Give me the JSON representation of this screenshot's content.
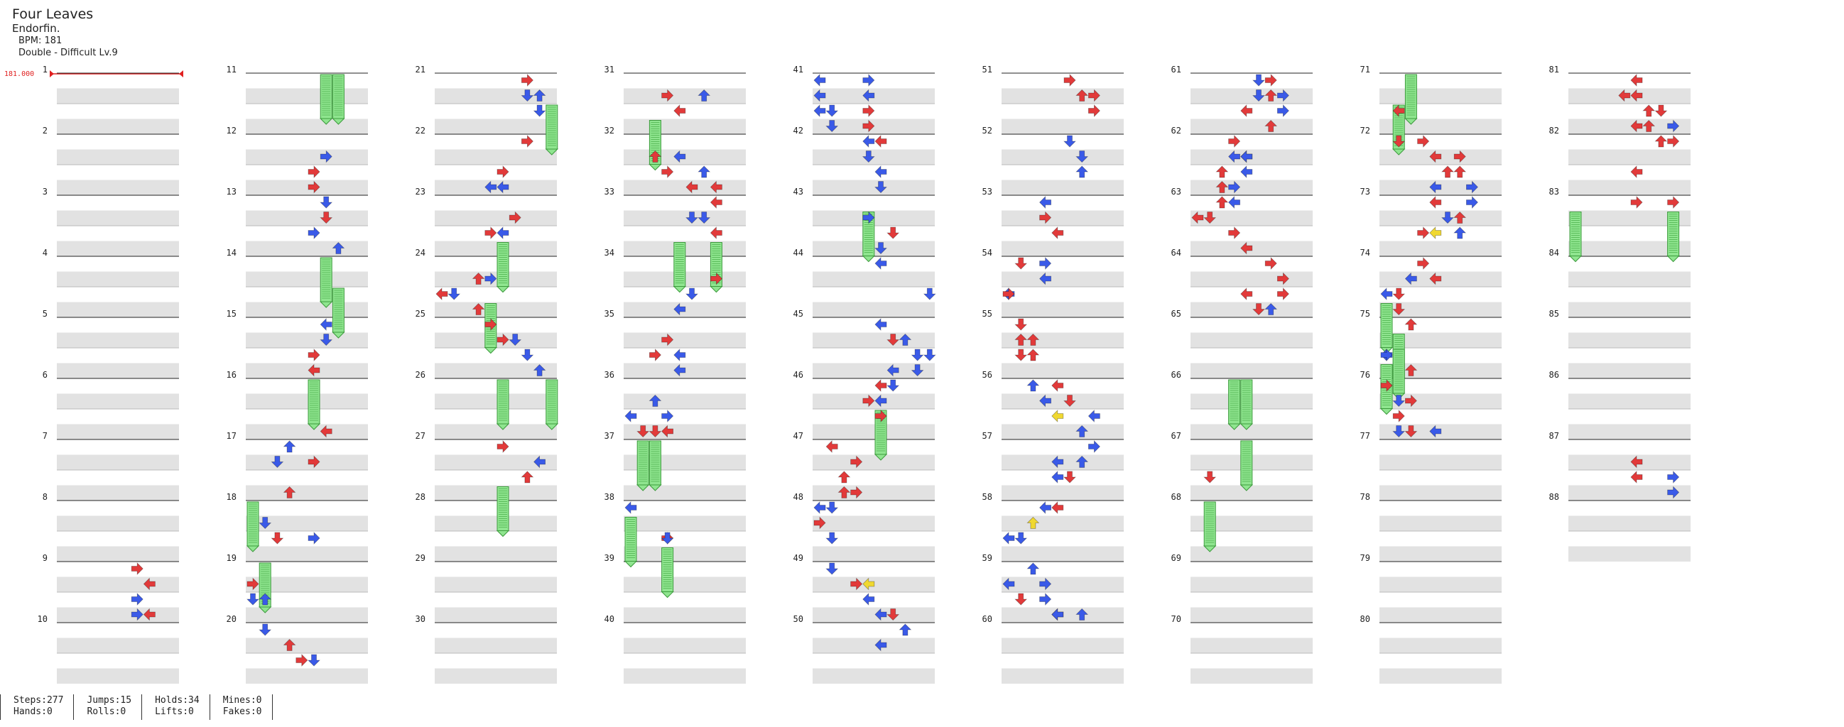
{
  "song": {
    "title": "Four Leaves",
    "artist": "Endorfin.",
    "bpm_line": "BPM: 181",
    "chart_line": "Double - Difficult Lv.9"
  },
  "bpm_marker": "181.000",
  "total_measures": 88,
  "stats": [
    {
      "a": "Steps:277",
      "b": "Hands:0"
    },
    {
      "a": "Jumps:15",
      "b": "Rolls:0"
    },
    {
      "a": "Holds:34",
      "b": "Lifts:0"
    },
    {
      "a": "Mines:0",
      "b": "Fakes:0"
    }
  ],
  "colors": {
    "quarter": "#e23a3a",
    "eighth": "#3a5ae8",
    "sixteenth": "#f0d830",
    "hold": "#8fe58f",
    "bpm": "#e02020",
    "band": "#e2e2e2"
  },
  "notes": [
    [
      9,
      0,
      6,
      "R",
      "q"
    ],
    [
      9,
      1,
      7,
      "L",
      "q"
    ],
    [
      9,
      2,
      6,
      "R",
      "e"
    ],
    [
      9,
      3,
      6,
      "R",
      "e"
    ],
    [
      9,
      3,
      7,
      "L",
      "q"
    ],
    [
      11,
      0,
      6,
      "L",
      "h"
    ],
    [
      11,
      0,
      7,
      "L",
      "h"
    ],
    [
      12,
      1,
      6,
      "R",
      "e"
    ],
    [
      12,
      2,
      5,
      "R",
      "q"
    ],
    [
      12,
      3,
      5,
      "R",
      "q"
    ],
    [
      13,
      0,
      6,
      "D",
      "e"
    ],
    [
      13,
      1,
      6,
      "D",
      "q"
    ],
    [
      13,
      2,
      5,
      "R",
      "e"
    ],
    [
      13,
      3,
      7,
      "U",
      "e"
    ],
    [
      14,
      0,
      6,
      "D",
      "h"
    ],
    [
      14,
      2,
      7,
      "L",
      "h"
    ],
    [
      15,
      0,
      6,
      "L",
      "e"
    ],
    [
      15,
      1,
      6,
      "D",
      "e"
    ],
    [
      15,
      2,
      5,
      "R",
      "q"
    ],
    [
      15,
      3,
      5,
      "L",
      "q"
    ],
    [
      16,
      0,
      5,
      "L",
      "h"
    ],
    [
      16,
      3,
      6,
      "L",
      "q"
    ],
    [
      17,
      0,
      3,
      "U",
      "e"
    ],
    [
      17,
      1,
      2,
      "D",
      "e"
    ],
    [
      17,
      1,
      5,
      "R",
      "q"
    ],
    [
      17,
      3,
      3,
      "U",
      "q"
    ],
    [
      18,
      0,
      0,
      "L",
      "h"
    ],
    [
      18,
      1,
      1,
      "D",
      "e"
    ],
    [
      18,
      2,
      2,
      "D",
      "q"
    ],
    [
      18,
      2,
      5,
      "R",
      "e"
    ],
    [
      19,
      0,
      1,
      "L",
      "h"
    ],
    [
      19,
      1,
      0,
      "R",
      "q"
    ],
    [
      19,
      2,
      0,
      "D",
      "e"
    ],
    [
      19,
      2,
      1,
      "U",
      "e"
    ],
    [
      20,
      0,
      1,
      "D",
      "e"
    ],
    [
      20,
      1,
      3,
      "U",
      "q"
    ],
    [
      20,
      2,
      4,
      "R",
      "q"
    ],
    [
      20,
      2,
      5,
      "D",
      "e"
    ],
    [
      21,
      0,
      7,
      "R",
      "q"
    ],
    [
      21,
      1,
      8,
      "U",
      "e"
    ],
    [
      21,
      1,
      7,
      "D",
      "e"
    ],
    [
      21,
      2,
      8,
      "D",
      "e"
    ],
    [
      21,
      2,
      9,
      "D",
      "h"
    ],
    [
      22,
      0,
      7,
      "R",
      "q"
    ],
    [
      22,
      2,
      5,
      "R",
      "q"
    ],
    [
      22,
      3,
      5,
      "L",
      "e"
    ],
    [
      22,
      3,
      4,
      "L",
      "e"
    ],
    [
      23,
      1,
      6,
      "R",
      "q"
    ],
    [
      23,
      2,
      4,
      "R",
      "q"
    ],
    [
      23,
      2,
      5,
      "L",
      "e"
    ],
    [
      23,
      3,
      5,
      "L",
      "h"
    ],
    [
      24,
      1,
      3,
      "U",
      "q"
    ],
    [
      24,
      1,
      4,
      "R",
      "e"
    ],
    [
      24,
      2,
      0,
      "L",
      "q"
    ],
    [
      24,
      2,
      1,
      "D",
      "e"
    ],
    [
      24,
      3,
      3,
      "U",
      "q"
    ],
    [
      24,
      3,
      4,
      "D",
      "h"
    ],
    [
      25,
      0,
      4,
      "R",
      "q"
    ],
    [
      25,
      1,
      6,
      "D",
      "e"
    ],
    [
      25,
      1,
      5,
      "R",
      "q"
    ],
    [
      25,
      2,
      7,
      "D",
      "e"
    ],
    [
      25,
      3,
      8,
      "U",
      "e"
    ],
    [
      26,
      0,
      5,
      "L",
      "h"
    ],
    [
      26,
      0,
      9,
      "L",
      "h"
    ],
    [
      27,
      0,
      5,
      "R",
      "q"
    ],
    [
      27,
      1,
      8,
      "L",
      "e"
    ],
    [
      27,
      2,
      7,
      "U",
      "q"
    ],
    [
      27,
      3,
      5,
      "D",
      "h"
    ],
    [
      31,
      1,
      6,
      "U",
      "e"
    ],
    [
      31,
      1,
      3,
      "R",
      "q"
    ],
    [
      31,
      2,
      4,
      "L",
      "q"
    ],
    [
      31,
      3,
      2,
      "L",
      "h"
    ],
    [
      32,
      1,
      2,
      "U",
      "q"
    ],
    [
      32,
      1,
      4,
      "L",
      "e"
    ],
    [
      32,
      2,
      3,
      "R",
      "q"
    ],
    [
      32,
      2,
      6,
      "U",
      "e"
    ],
    [
      32,
      3,
      5,
      "L",
      "q"
    ],
    [
      32,
      3,
      7,
      "L",
      "q"
    ],
    [
      33,
      0,
      7,
      "L",
      "q"
    ],
    [
      33,
      1,
      5,
      "D",
      "e"
    ],
    [
      33,
      1,
      6,
      "D",
      "e"
    ],
    [
      33,
      2,
      7,
      "L",
      "q"
    ],
    [
      33,
      3,
      4,
      "L",
      "h"
    ],
    [
      33,
      3,
      7,
      "L",
      "h"
    ],
    [
      34,
      1,
      7,
      "R",
      "q"
    ],
    [
      34,
      2,
      5,
      "D",
      "e"
    ],
    [
      34,
      3,
      4,
      "L",
      "e"
    ],
    [
      35,
      1,
      3,
      "R",
      "q"
    ],
    [
      35,
      2,
      4,
      "L",
      "e"
    ],
    [
      35,
      2,
      2,
      "R",
      "q"
    ],
    [
      35,
      3,
      4,
      "L",
      "e"
    ],
    [
      36,
      1,
      2,
      "U",
      "e"
    ],
    [
      36,
      2,
      0,
      "L",
      "e"
    ],
    [
      36,
      2,
      3,
      "R",
      "e"
    ],
    [
      36,
      3,
      1,
      "D",
      "q"
    ],
    [
      36,
      3,
      2,
      "D",
      "q"
    ],
    [
      36,
      3,
      3,
      "L",
      "q"
    ],
    [
      37,
      0,
      1,
      "D",
      "h"
    ],
    [
      37,
      0,
      2,
      "D",
      "h"
    ],
    [
      38,
      0,
      0,
      "L",
      "e"
    ],
    [
      38,
      1,
      0,
      "L",
      "h"
    ],
    [
      38,
      2,
      3,
      "R",
      "q"
    ],
    [
      38,
      2,
      3,
      "D",
      "e"
    ],
    [
      38,
      3,
      3,
      "D",
      "h"
    ],
    [
      41,
      0,
      0,
      "L",
      "e"
    ],
    [
      41,
      0,
      4,
      "R",
      "e"
    ],
    [
      41,
      1,
      0,
      "L",
      "e"
    ],
    [
      41,
      1,
      4,
      "L",
      "e"
    ],
    [
      41,
      2,
      0,
      "L",
      "e"
    ],
    [
      41,
      2,
      1,
      "D",
      "e"
    ],
    [
      41,
      2,
      4,
      "R",
      "q"
    ],
    [
      41,
      3,
      1,
      "D",
      "e"
    ],
    [
      41,
      3,
      4,
      "R",
      "q"
    ],
    [
      42,
      0,
      4,
      "L",
      "e"
    ],
    [
      42,
      0,
      5,
      "L",
      "q"
    ],
    [
      42,
      1,
      4,
      "D",
      "e"
    ],
    [
      42,
      2,
      5,
      "L",
      "e"
    ],
    [
      42,
      3,
      5,
      "D",
      "e"
    ],
    [
      43,
      1,
      4,
      "R",
      "e"
    ],
    [
      43,
      1,
      4,
      "D",
      "h"
    ],
    [
      43,
      2,
      6,
      "D",
      "q"
    ],
    [
      43,
      3,
      5,
      "D",
      "e"
    ],
    [
      44,
      0,
      5,
      "L",
      "e"
    ],
    [
      44,
      2,
      9,
      "D",
      "e"
    ],
    [
      45,
      0,
      5,
      "L",
      "e"
    ],
    [
      45,
      1,
      6,
      "D",
      "q"
    ],
    [
      45,
      1,
      7,
      "U",
      "e"
    ],
    [
      45,
      2,
      8,
      "D",
      "e"
    ],
    [
      45,
      2,
      9,
      "D",
      "e"
    ],
    [
      45,
      3,
      6,
      "L",
      "e"
    ],
    [
      45,
      3,
      8,
      "D",
      "e"
    ],
    [
      46,
      0,
      5,
      "L",
      "q"
    ],
    [
      46,
      0,
      6,
      "D",
      "e"
    ],
    [
      46,
      1,
      5,
      "L",
      "e"
    ],
    [
      46,
      1,
      4,
      "R",
      "q"
    ],
    [
      46,
      2,
      5,
      "R",
      "q"
    ],
    [
      46,
      2,
      5,
      "D",
      "h"
    ],
    [
      47,
      0,
      1,
      "L",
      "q"
    ],
    [
      47,
      1,
      3,
      "R",
      "q"
    ],
    [
      47,
      2,
      2,
      "U",
      "q"
    ],
    [
      47,
      3,
      2,
      "U",
      "q"
    ],
    [
      47,
      3,
      3,
      "R",
      "q"
    ],
    [
      48,
      0,
      0,
      "L",
      "e"
    ],
    [
      48,
      0,
      1,
      "D",
      "e"
    ],
    [
      48,
      2,
      1,
      "D",
      "e"
    ],
    [
      48,
      1,
      0,
      "R",
      "q"
    ],
    [
      49,
      0,
      1,
      "D",
      "e"
    ],
    [
      49,
      1,
      3,
      "R",
      "q"
    ],
    [
      49,
      1,
      4,
      "L",
      "s"
    ],
    [
      49,
      2,
      4,
      "L",
      "e"
    ],
    [
      49,
      3,
      5,
      "L",
      "e"
    ],
    [
      49,
      3,
      6,
      "D",
      "q"
    ],
    [
      50,
      0,
      7,
      "U",
      "e"
    ],
    [
      50,
      1,
      5,
      "L",
      "e"
    ],
    [
      51,
      0,
      5,
      "R",
      "q"
    ],
    [
      51,
      1,
      6,
      "U",
      "q"
    ],
    [
      51,
      1,
      7,
      "R",
      "q"
    ],
    [
      51,
      2,
      7,
      "R",
      "q"
    ],
    [
      52,
      0,
      5,
      "D",
      "e"
    ],
    [
      52,
      1,
      6,
      "D",
      "e"
    ],
    [
      52,
      2,
      6,
      "U",
      "e"
    ],
    [
      53,
      0,
      3,
      "L",
      "e"
    ],
    [
      53,
      1,
      3,
      "R",
      "q"
    ],
    [
      53,
      2,
      4,
      "L",
      "q"
    ],
    [
      54,
      0,
      1,
      "D",
      "q"
    ],
    [
      54,
      0,
      3,
      "R",
      "e"
    ],
    [
      54,
      1,
      3,
      "L",
      "e"
    ],
    [
      54,
      2,
      0,
      "L",
      "e"
    ],
    [
      54,
      2,
      0,
      "R",
      "q"
    ],
    [
      55,
      0,
      1,
      "D",
      "q"
    ],
    [
      55,
      1,
      1,
      "U",
      "q"
    ],
    [
      55,
      1,
      2,
      "U",
      "q"
    ],
    [
      55,
      2,
      1,
      "D",
      "q"
    ],
    [
      55,
      2,
      2,
      "U",
      "q"
    ],
    [
      56,
      0,
      2,
      "U",
      "e"
    ],
    [
      56,
      0,
      4,
      "L",
      "q"
    ],
    [
      56,
      1,
      3,
      "L",
      "e"
    ],
    [
      56,
      1,
      5,
      "D",
      "q"
    ],
    [
      56,
      2,
      4,
      "L",
      "s"
    ],
    [
      56,
      2,
      7,
      "L",
      "e"
    ],
    [
      56,
      3,
      6,
      "U",
      "e"
    ],
    [
      57,
      0,
      7,
      "R",
      "e"
    ],
    [
      57,
      1,
      4,
      "L",
      "e"
    ],
    [
      57,
      1,
      6,
      "U",
      "e"
    ],
    [
      57,
      2,
      4,
      "L",
      "e"
    ],
    [
      57,
      2,
      5,
      "D",
      "q"
    ],
    [
      58,
      0,
      3,
      "L",
      "e"
    ],
    [
      58,
      0,
      4,
      "L",
      "q"
    ],
    [
      58,
      1,
      2,
      "U",
      "s"
    ],
    [
      58,
      2,
      1,
      "D",
      "e"
    ],
    [
      58,
      2,
      0,
      "L",
      "e"
    ],
    [
      59,
      0,
      2,
      "U",
      "e"
    ],
    [
      59,
      1,
      0,
      "L",
      "e"
    ],
    [
      59,
      1,
      3,
      "R",
      "e"
    ],
    [
      59,
      2,
      1,
      "D",
      "q"
    ],
    [
      59,
      2,
      3,
      "R",
      "e"
    ],
    [
      59,
      3,
      4,
      "L",
      "q"
    ],
    [
      59,
      3,
      6,
      "U",
      "e"
    ],
    [
      59,
      3,
      4,
      "L",
      "e"
    ],
    [
      61,
      0,
      5,
      "D",
      "e"
    ],
    [
      61,
      0,
      6,
      "R",
      "q"
    ],
    [
      61,
      1,
      5,
      "D",
      "e"
    ],
    [
      61,
      1,
      6,
      "U",
      "q"
    ],
    [
      61,
      1,
      7,
      "R",
      "e"
    ],
    [
      61,
      2,
      4,
      "L",
      "q"
    ],
    [
      61,
      2,
      7,
      "R",
      "e"
    ],
    [
      61,
      3,
      6,
      "U",
      "q"
    ],
    [
      62,
      0,
      3,
      "R",
      "q"
    ],
    [
      62,
      1,
      4,
      "L",
      "s"
    ],
    [
      62,
      1,
      3,
      "L",
      "e"
    ],
    [
      62,
      1,
      4,
      "L",
      "e"
    ],
    [
      62,
      2,
      2,
      "U",
      "q"
    ],
    [
      62,
      2,
      4,
      "L",
      "e"
    ],
    [
      62,
      3,
      2,
      "U",
      "q"
    ],
    [
      62,
      3,
      3,
      "R",
      "e"
    ],
    [
      63,
      0,
      2,
      "U",
      "q"
    ],
    [
      63,
      0,
      3,
      "L",
      "e"
    ],
    [
      63,
      1,
      0,
      "L",
      "q"
    ],
    [
      63,
      1,
      1,
      "D",
      "q"
    ],
    [
      63,
      2,
      3,
      "R",
      "q"
    ],
    [
      63,
      3,
      4,
      "L",
      "q"
    ],
    [
      64,
      0,
      6,
      "R",
      "q"
    ],
    [
      64,
      1,
      7,
      "R",
      "q"
    ],
    [
      64,
      2,
      4,
      "L",
      "q"
    ],
    [
      64,
      2,
      7,
      "R",
      "q"
    ],
    [
      64,
      3,
      5,
      "D",
      "q"
    ],
    [
      64,
      3,
      6,
      "U",
      "e"
    ],
    [
      66,
      0,
      3,
      "L",
      "h"
    ],
    [
      66,
      0,
      4,
      "L",
      "h"
    ],
    [
      67,
      0,
      4,
      "L",
      "h"
    ],
    [
      67,
      2,
      1,
      "D",
      "q"
    ],
    [
      68,
      0,
      1,
      "D",
      "h"
    ],
    [
      71,
      0,
      2,
      "U",
      "h"
    ],
    [
      71,
      2,
      1,
      "L",
      "q"
    ],
    [
      71,
      2,
      1,
      "L",
      "h"
    ],
    [
      72,
      0,
      1,
      "D",
      "q"
    ],
    [
      72,
      0,
      3,
      "R",
      "q"
    ],
    [
      72,
      1,
      4,
      "L",
      "q"
    ],
    [
      72,
      1,
      6,
      "R",
      "q"
    ],
    [
      72,
      2,
      5,
      "U",
      "q"
    ],
    [
      72,
      2,
      6,
      "U",
      "q"
    ],
    [
      72,
      3,
      4,
      "L",
      "e"
    ],
    [
      72,
      3,
      7,
      "R",
      "e"
    ],
    [
      73,
      0,
      4,
      "L",
      "q"
    ],
    [
      73,
      0,
      7,
      "R",
      "e"
    ],
    [
      73,
      1,
      5,
      "D",
      "e"
    ],
    [
      73,
      1,
      6,
      "U",
      "q"
    ],
    [
      73,
      2,
      4,
      "L",
      "s"
    ],
    [
      73,
      2,
      3,
      "R",
      "q"
    ],
    [
      73,
      2,
      6,
      "U",
      "e"
    ],
    [
      74,
      0,
      3,
      "R",
      "q"
    ],
    [
      74,
      1,
      4,
      "L",
      "q"
    ],
    [
      74,
      1,
      2,
      "L",
      "e"
    ],
    [
      74,
      2,
      0,
      "L",
      "e"
    ],
    [
      74,
      2,
      1,
      "D",
      "q"
    ],
    [
      74,
      3,
      0,
      "L",
      "h"
    ],
    [
      74,
      3,
      1,
      "D",
      "q"
    ],
    [
      75,
      0,
      2,
      "U",
      "q"
    ],
    [
      75,
      1,
      1,
      "D",
      "h"
    ],
    [
      75,
      2,
      0,
      "L",
      "e"
    ],
    [
      75,
      2,
      0,
      "R",
      "e"
    ],
    [
      75,
      2,
      1,
      "D",
      "h"
    ],
    [
      75,
      3,
      0,
      "L",
      "h"
    ],
    [
      75,
      3,
      2,
      "U",
      "q"
    ],
    [
      76,
      0,
      0,
      "R",
      "q"
    ],
    [
      76,
      1,
      2,
      "R",
      "q"
    ],
    [
      76,
      1,
      1,
      "D",
      "e"
    ],
    [
      76,
      2,
      1,
      "R",
      "q"
    ],
    [
      76,
      3,
      2,
      "D",
      "q"
    ],
    [
      76,
      3,
      4,
      "L",
      "e"
    ],
    [
      76,
      3,
      1,
      "D",
      "e"
    ],
    [
      81,
      0,
      5,
      "L",
      "q"
    ],
    [
      81,
      1,
      4,
      "L",
      "q"
    ],
    [
      81,
      1,
      5,
      "L",
      "q"
    ],
    [
      81,
      2,
      6,
      "U",
      "q"
    ],
    [
      81,
      2,
      7,
      "D",
      "q"
    ],
    [
      81,
      3,
      5,
      "L",
      "q"
    ],
    [
      81,
      3,
      6,
      "U",
      "q"
    ],
    [
      81,
      3,
      8,
      "R",
      "e"
    ],
    [
      82,
      0,
      7,
      "U",
      "q"
    ],
    [
      82,
      0,
      8,
      "R",
      "q"
    ],
    [
      82,
      2,
      5,
      "L",
      "q"
    ],
    [
      83,
      0,
      5,
      "R",
      "q"
    ],
    [
      83,
      0,
      8,
      "R",
      "q"
    ],
    [
      83,
      1,
      0,
      "L",
      "h"
    ],
    [
      83,
      1,
      8,
      "L",
      "h"
    ],
    [
      87,
      1,
      5,
      "L",
      "q"
    ],
    [
      87,
      2,
      5,
      "L",
      "q"
    ],
    [
      87,
      2,
      8,
      "R",
      "e"
    ],
    [
      87,
      3,
      8,
      "R",
      "e"
    ]
  ]
}
